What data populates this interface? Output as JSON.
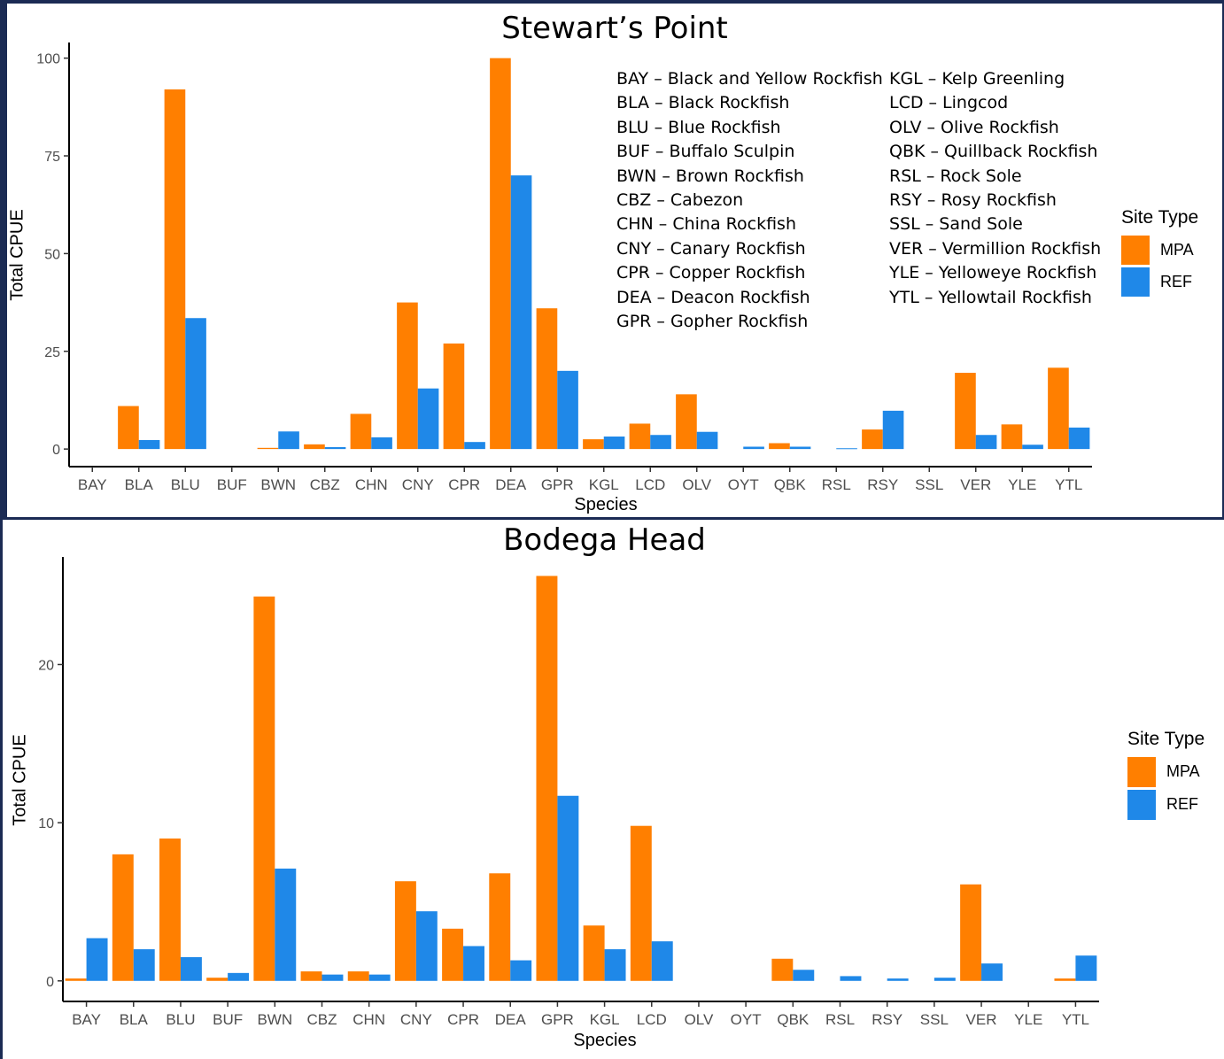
{
  "colors": {
    "mpa": "#ff7f00",
    "ref": "#1f88e8",
    "axis": "#000000"
  },
  "key": {
    "col1": [
      "BAY – Black and Yellow Rockfish",
      "BLA – Black Rockfish",
      "BLU – Blue Rockfish",
      "BUF – Buffalo Sculpin",
      "BWN – Brown Rockfish",
      "CBZ – Cabezon",
      "CHN – China Rockfish",
      "CNY – Canary Rockfish",
      "CPR – Copper Rockfish",
      "DEA – Deacon Rockfish",
      "GPR – Gopher Rockfish"
    ],
    "col2": [
      "KGL – Kelp Greenling",
      "LCD – Lingcod",
      "OLV – Olive Rockfish",
      "QBK – Quillback Rockfish",
      "RSL – Rock Sole",
      "RSY – Rosy Rockfish",
      "SSL – Sand Sole",
      "VER – Vermillion Rockfish",
      "YLE – Yelloweye Rockfish",
      "YTL – Yellowtail Rockfish"
    ]
  },
  "chart_data": [
    {
      "type": "bar",
      "title": "Stewart’s Point",
      "xlabel": "Species",
      "ylabel": "Total CPUE",
      "ylim": [
        -4.5,
        104
      ],
      "yticks": [
        0,
        25,
        50,
        75,
        100
      ],
      "categories": [
        "BAY",
        "BLA",
        "BLU",
        "BUF",
        "BWN",
        "CBZ",
        "CHN",
        "CNY",
        "CPR",
        "DEA",
        "GPR",
        "KGL",
        "LCD",
        "OLV",
        "OYT",
        "QBK",
        "RSL",
        "RSY",
        "SSL",
        "VER",
        "YLE",
        "YTL"
      ],
      "legend": {
        "title": "Site Type",
        "position": "right"
      },
      "series": [
        {
          "name": "MPA",
          "values": [
            null,
            11,
            92,
            null,
            0.3,
            1.2,
            9,
            37.5,
            27,
            100,
            36,
            2.5,
            6.5,
            14,
            null,
            1.5,
            null,
            5,
            null,
            19.5,
            6.3,
            20.8
          ]
        },
        {
          "name": "REF",
          "values": [
            null,
            2.3,
            33.5,
            null,
            4.5,
            0.5,
            3,
            15.5,
            1.8,
            70,
            20,
            3.2,
            3.6,
            4.4,
            0.6,
            0.6,
            0.2,
            9.8,
            null,
            3.6,
            1.1,
            5.5
          ]
        }
      ]
    },
    {
      "type": "bar",
      "title": "Bodega Head",
      "xlabel": "Species",
      "ylabel": "Total CPUE",
      "ylim": [
        -1.3,
        26.8
      ],
      "yticks": [
        0,
        10,
        20
      ],
      "categories": [
        "BAY",
        "BLA",
        "BLU",
        "BUF",
        "BWN",
        "CBZ",
        "CHN",
        "CNY",
        "CPR",
        "DEA",
        "GPR",
        "KGL",
        "LCD",
        "OLV",
        "OYT",
        "QBK",
        "RSL",
        "RSY",
        "SSL",
        "VER",
        "YLE",
        "YTL"
      ],
      "legend": {
        "title": "Site Type",
        "position": "right"
      },
      "series": [
        {
          "name": "MPA",
          "values": [
            0.15,
            8,
            9,
            0.2,
            24.3,
            0.6,
            0.6,
            6.3,
            3.3,
            6.8,
            25.6,
            3.5,
            9.8,
            null,
            null,
            1.4,
            null,
            null,
            null,
            6.1,
            null,
            0.15
          ]
        },
        {
          "name": "REF",
          "values": [
            2.7,
            2,
            1.5,
            0.5,
            7.1,
            0.4,
            0.4,
            4.4,
            2.2,
            1.3,
            11.7,
            2,
            2.5,
            null,
            null,
            0.7,
            0.3,
            0.15,
            0.2,
            1.1,
            null,
            1.6
          ]
        }
      ]
    }
  ]
}
